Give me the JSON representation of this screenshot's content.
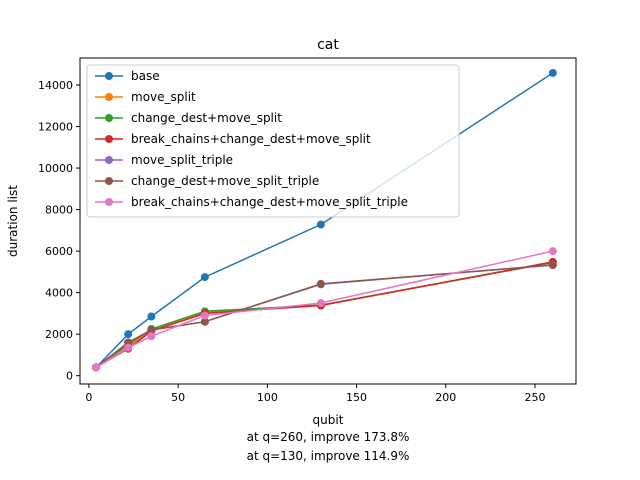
{
  "chart_data": {
    "type": "line",
    "title": "cat",
    "xlabel": "qubit",
    "ylabel": "duration list",
    "xlim": [
      -5,
      273
    ],
    "ylim": [
      -400,
      15300
    ],
    "xticks": [
      0,
      50,
      100,
      150,
      200,
      250
    ],
    "yticks": [
      0,
      2000,
      4000,
      6000,
      8000,
      10000,
      12000,
      14000
    ],
    "grid": false,
    "legend_position": "upper-left",
    "x": [
      4,
      22,
      35,
      65,
      130,
      260
    ],
    "series": [
      {
        "name": "base",
        "color": "#1f77b4",
        "values": [
          400,
          2000,
          2850,
          4750,
          7280,
          14580
        ]
      },
      {
        "name": "move_split",
        "color": "#ff7f0e",
        "values": [
          400,
          1400,
          2200,
          3050,
          3400,
          5450
        ]
      },
      {
        "name": "change_dest+move_split",
        "color": "#2ca02c",
        "values": [
          400,
          1500,
          2250,
          3100,
          3400,
          5450
        ]
      },
      {
        "name": "break_chains+change_dest+move_split",
        "color": "#d62728",
        "values": [
          400,
          1300,
          2150,
          3000,
          3380,
          5480
        ]
      },
      {
        "name": "move_split_triple",
        "color": "#9467bd",
        "values": [
          400,
          1600,
          2200,
          2600,
          4400,
          5330
        ]
      },
      {
        "name": "change_dest+move_split_triple",
        "color": "#8c564b",
        "values": [
          400,
          1600,
          2200,
          2600,
          4420,
          5330
        ]
      },
      {
        "name": "break_chains+change_dest+move_split_triple",
        "color": "#e377c2",
        "values": [
          400,
          1350,
          1900,
          2900,
          3500,
          6000
        ]
      }
    ],
    "annotations": [
      "at q=260, improve 173.8%",
      "at q=130, improve 114.9%"
    ]
  }
}
